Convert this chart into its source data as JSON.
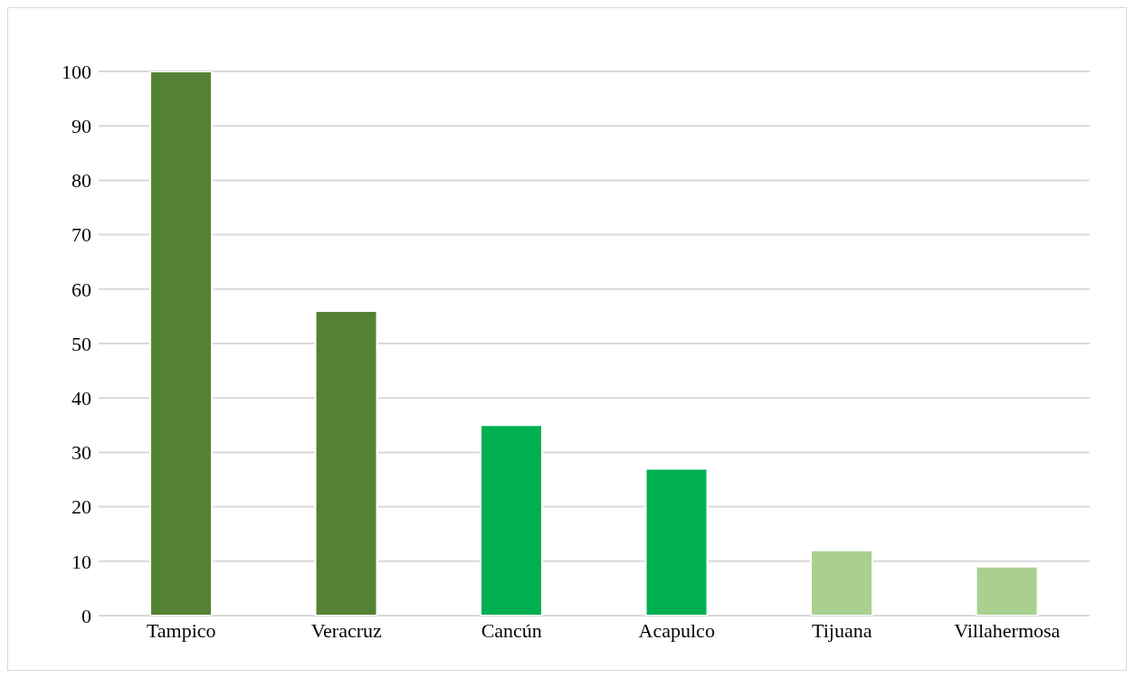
{
  "chart_data": {
    "type": "bar",
    "categories": [
      "Tampico",
      "Veracruz",
      "Cancún",
      "Acapulco",
      "Tijuana",
      "Villahermosa"
    ],
    "values": [
      100,
      56,
      35,
      27,
      12,
      9
    ],
    "colors": [
      "#548235",
      "#548235",
      "#00b050",
      "#00b050",
      "#a9d08e",
      "#a9d08e"
    ],
    "ylim": [
      0,
      100
    ],
    "yticks": [
      0,
      10,
      20,
      30,
      40,
      50,
      60,
      70,
      80,
      90,
      100
    ],
    "grid": "y"
  }
}
